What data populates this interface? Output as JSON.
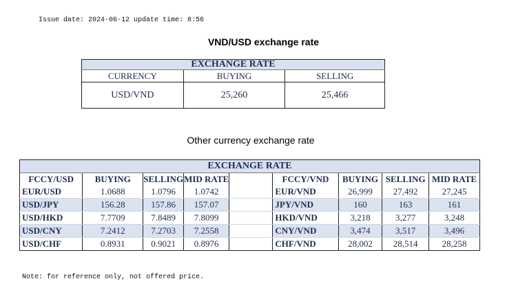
{
  "issue_line": "Issue date: 2024-06-12 update time: 8:56",
  "main_title": "VND/USD exchange rate",
  "vnd_table": {
    "band_title": "EXCHANGE RATE",
    "headers": [
      "CURRENCY",
      "BUYING",
      "SELLING"
    ],
    "row": [
      "USD/VND",
      "25,260",
      "25,466"
    ]
  },
  "other_title": "Other currency exchange rate",
  "other_table": {
    "band_title": "EXCHANGE  RATE",
    "left_headers": [
      "FCCY/USD",
      "BUYING",
      "SELLING",
      "MID RATE"
    ],
    "right_headers": [
      "FCCY/VND",
      "BUYING",
      "SELLING",
      "MID RATE"
    ],
    "rows": [
      {
        "l_code": "EUR/USD",
        "l_buy": "1.0688",
        "l_sell": "1.0796",
        "l_mid": "1.0742",
        "r_code": "EUR/VND",
        "r_buy": "26,999",
        "r_sell": "27,492",
        "r_mid": "27,245"
      },
      {
        "l_code": "USD/JPY",
        "l_buy": "156.28",
        "l_sell": "157.86",
        "l_mid": "157.07",
        "r_code": "JPY/VND",
        "r_buy": "160",
        "r_sell": "163",
        "r_mid": "161"
      },
      {
        "l_code": "USD/HKD",
        "l_buy": "7.7709",
        "l_sell": "7.8489",
        "l_mid": "7.8099",
        "r_code": "HKD/VND",
        "r_buy": "3,218",
        "r_sell": "3,277",
        "r_mid": "3,248"
      },
      {
        "l_code": "USD/CNY",
        "l_buy": "7.2412",
        "l_sell": "7.2703",
        "l_mid": "7.2558",
        "r_code": "CNY/VND",
        "r_buy": "3,474",
        "r_sell": "3,517",
        "r_mid": "3,496"
      },
      {
        "l_code": "USD/CHF",
        "l_buy": "0.8931",
        "l_sell": "0.9021",
        "l_mid": "0.8976",
        "r_code": "CHF/VND",
        "r_buy": "28,002",
        "r_sell": "28,514",
        "r_mid": "28,258"
      }
    ]
  },
  "note": "Note: for reference only, not offered price.",
  "colors": {
    "band": "#d9e1f1",
    "alt_row": "#dbe3f1",
    "text": "#1f2d4e"
  }
}
